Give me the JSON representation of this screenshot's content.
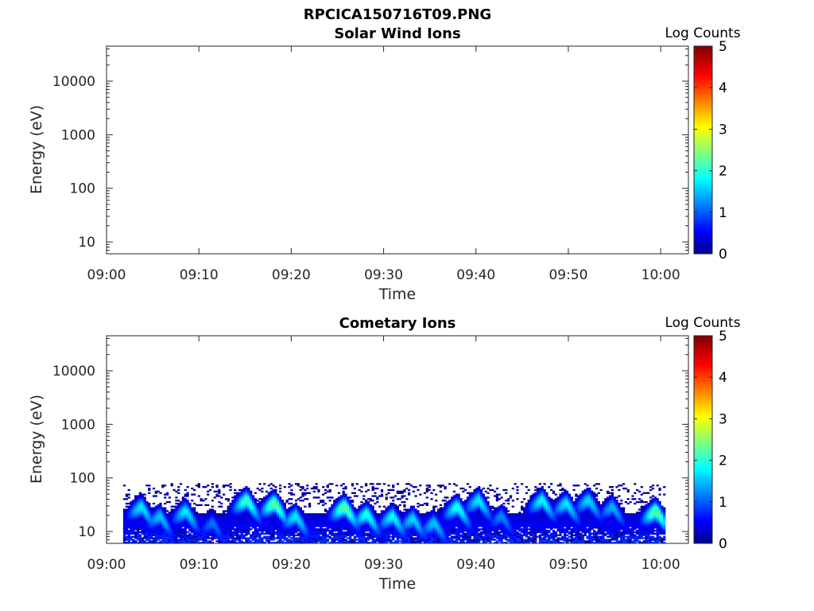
{
  "figure_title": "RPCICA150716T09.PNG",
  "chart_data": [
    {
      "type": "heatmap",
      "title": "Solar Wind Ions",
      "xlabel": "Time",
      "ylabel": "Energy (eV)",
      "x_ticks": [
        "09:00",
        "09:10",
        "09:20",
        "09:30",
        "09:40",
        "09:50",
        "10:00"
      ],
      "x_range_min": [
        0,
        63
      ],
      "y_scale": "log",
      "y_ticks": [
        "10",
        "100",
        "1000",
        "10000"
      ],
      "y_range": [
        6,
        45000
      ],
      "colorbar": {
        "label": "Log Counts",
        "ticks": [
          "0",
          "1",
          "2",
          "3",
          "4",
          "5"
        ],
        "range": [
          0,
          5
        ],
        "colormap": "jet"
      },
      "grid": false,
      "cells": []
    },
    {
      "type": "heatmap",
      "title": "Cometary Ions",
      "xlabel": "Time",
      "ylabel": "Energy (eV)",
      "x_ticks": [
        "09:00",
        "09:10",
        "09:20",
        "09:30",
        "09:40",
        "09:50",
        "10:00"
      ],
      "x_range_min": [
        0,
        63
      ],
      "y_scale": "log",
      "y_ticks": [
        "10",
        "100",
        "1000",
        "10000"
      ],
      "y_range": [
        6,
        45000
      ],
      "colorbar": {
        "label": "Log Counts",
        "ticks": [
          "0",
          "1",
          "2",
          "3",
          "4",
          "5"
        ],
        "range": [
          0,
          5
        ],
        "colormap": "jet"
      },
      "grid": false,
      "data_time_range_min": [
        1.8,
        60.5
      ],
      "energy_upper_eV": 80,
      "blobs": [
        {
          "t_min": 3.8,
          "peak_eV": 30,
          "level": 1.8
        },
        {
          "t_min": 5.8,
          "peak_eV": 20,
          "level": 1.6
        },
        {
          "t_min": 8.6,
          "peak_eV": 25,
          "level": 1.8
        },
        {
          "t_min": 11.5,
          "peak_eV": 15,
          "level": 1.2
        },
        {
          "t_min": 15.2,
          "peak_eV": 40,
          "level": 2.2
        },
        {
          "t_min": 18.2,
          "peak_eV": 35,
          "level": 2.4
        },
        {
          "t_min": 20.5,
          "peak_eV": 20,
          "level": 1.8
        },
        {
          "t_min": 25.8,
          "peak_eV": 30,
          "level": 2.4
        },
        {
          "t_min": 28.2,
          "peak_eV": 22,
          "level": 2.0
        },
        {
          "t_min": 31.0,
          "peak_eV": 20,
          "level": 1.9
        },
        {
          "t_min": 33.2,
          "peak_eV": 18,
          "level": 1.7
        },
        {
          "t_min": 35.5,
          "peak_eV": 15,
          "level": 1.6
        },
        {
          "t_min": 38.0,
          "peak_eV": 30,
          "level": 2.0
        },
        {
          "t_min": 40.3,
          "peak_eV": 40,
          "level": 1.8
        },
        {
          "t_min": 42.8,
          "peak_eV": 20,
          "level": 1.3
        },
        {
          "t_min": 47.2,
          "peak_eV": 40,
          "level": 1.9
        },
        {
          "t_min": 49.8,
          "peak_eV": 35,
          "level": 1.8
        },
        {
          "t_min": 52.2,
          "peak_eV": 40,
          "level": 1.7
        },
        {
          "t_min": 54.8,
          "peak_eV": 30,
          "level": 1.5
        },
        {
          "t_min": 59.5,
          "peak_eV": 25,
          "level": 2.4
        }
      ]
    }
  ]
}
